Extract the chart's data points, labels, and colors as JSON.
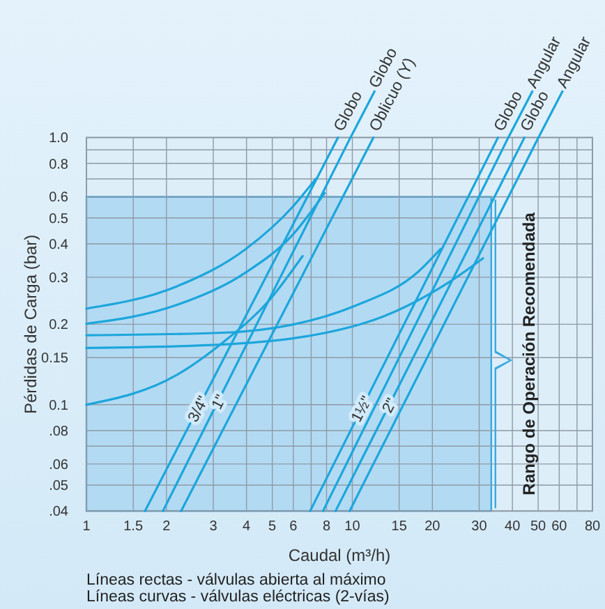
{
  "chart_data": {
    "type": "line",
    "xlabel": "Caudal (m³/h)",
    "ylabel": "Pérdidas de Carga (bar)",
    "log": "xy",
    "grid": true,
    "legend": false,
    "marker": "none",
    "line_style": "solid",
    "xlim": [
      1,
      80
    ],
    "ylim": [
      0.04,
      1.0
    ],
    "xticks": [
      1,
      1.5,
      2,
      3,
      4,
      5,
      6,
      {
        "value": 7,
        "label": null
      },
      8,
      10,
      15,
      20,
      30,
      40,
      50,
      60,
      {
        "value": 70,
        "label": null
      },
      80
    ],
    "yticks": [
      {
        "value": 0.04,
        "label": ".04"
      },
      {
        "value": 0.05,
        "label": ".05"
      },
      {
        "value": 0.06,
        "label": ".06"
      },
      {
        "value": 0.07,
        "label": null
      },
      {
        "value": 0.08,
        "label": ".08"
      },
      0.1,
      0.15,
      0.2,
      0.3,
      0.4,
      0.5,
      0.6,
      {
        "value": 0.7,
        "label": null
      },
      0.8,
      {
        "value": 0.9,
        "label": null
      },
      {
        "value": 1.0,
        "label": "1.0"
      }
    ],
    "series": [
      {
        "type": "area",
        "color": "#a9d5f1",
        "x": [
          1,
          33.3
        ],
        "values": [
          0.6,
          0.6
        ]
      },
      {
        "name": "Globo",
        "color": "#1ca6dc",
        "x": [
          1.66,
          8.83
        ],
        "values": [
          0.04,
          1.0
        ]
      },
      {
        "name": "Globo",
        "color": "#1ca6dc",
        "x": [
          1.94,
          9.84
        ],
        "values": [
          0.04,
          1.0
        ]
      },
      {
        "name": "Oblicuo (Y)",
        "color": "#1ca6dc",
        "x": [
          2.27,
          12.0
        ],
        "values": [
          0.04,
          1.0
        ]
      },
      {
        "name": "Globo",
        "color": "#1ca6dc",
        "x": [
          6.94,
          35.3
        ],
        "values": [
          0.04,
          1.0
        ]
      },
      {
        "name": "Angular",
        "color": "#1ca6dc",
        "x": [
          7.76,
          38.6
        ],
        "values": [
          0.04,
          1.0
        ]
      },
      {
        "name": "Globo",
        "color": "#1ca6dc",
        "x": [
          8.65,
          44.4
        ],
        "values": [
          0.04,
          1.0
        ]
      },
      {
        "name": "Angular",
        "color": "#1ca6dc",
        "x": [
          9.77,
          50.1
        ],
        "values": [
          0.04,
          1.0
        ]
      },
      {
        "color": "#1ca6dc",
        "x": [
          1,
          2.18,
          3.98,
          5.96,
          7.28
        ],
        "values": [
          0.229,
          0.277,
          0.383,
          0.55,
          0.7
        ]
      },
      {
        "color": "#1ca6dc",
        "x": [
          1,
          2.18,
          3.98,
          5.96,
          7.87
        ],
        "values": [
          0.201,
          0.236,
          0.313,
          0.432,
          0.62
        ]
      },
      {
        "color": "#1ca6dc",
        "x": [
          1,
          2.18,
          3.26,
          4.87,
          6.5
        ],
        "values": [
          0.1,
          0.129,
          0.171,
          0.246,
          0.36
        ]
      },
      {
        "color": "#1ca6dc",
        "x": [
          1,
          3.26,
          10.4,
          17.6,
          21.5
        ],
        "values": [
          0.182,
          0.186,
          0.236,
          0.313,
          0.383
        ]
      },
      {
        "color": "#1ca6dc",
        "x": [
          1,
          3.26,
          10.9,
          23.3,
          31
        ],
        "values": [
          0.163,
          0.168,
          0.201,
          0.289,
          0.353
        ]
      }
    ],
    "annotations": [
      "Rango de Operación Recomendada",
      {
        "text": "3/4\"",
        "x": 2.65,
        "y": 0.096
      },
      {
        "text": "1\"",
        "x": 3.17,
        "y": 0.102
      },
      {
        "text": "1½\"",
        "x": 10.9,
        "y": 0.096
      },
      {
        "text": "2\"",
        "x": 13.9,
        "y": 0.099
      },
      "Líneas rectas - válvulas abierta al máximo",
      "Líneas curvas - válvulas eléctricas (2-vías)"
    ]
  }
}
